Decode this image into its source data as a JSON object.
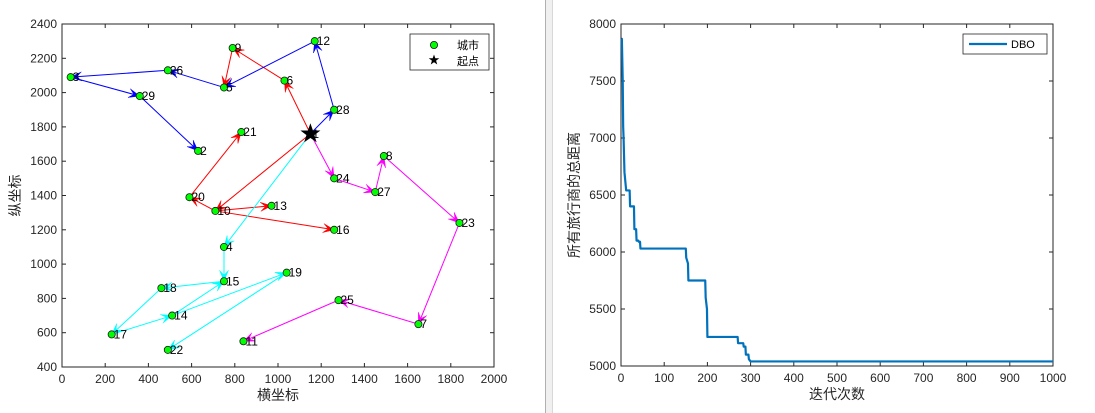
{
  "chart_data": [
    {
      "type": "scatter",
      "xlabel": "横坐标",
      "ylabel": "纵坐标",
      "xlim": [
        0,
        2000
      ],
      "ylim": [
        400,
        2400
      ],
      "xticks": [
        "0",
        "200",
        "400",
        "600",
        "800",
        "1000",
        "1200",
        "1400",
        "1600",
        "1800",
        "2000"
      ],
      "yticks": [
        "400",
        "600",
        "800",
        "1000",
        "1200",
        "1400",
        "1600",
        "1800",
        "2000",
        "2200",
        "2400"
      ],
      "grid": false,
      "legend_position": "top-right",
      "legend": {
        "city_label": "城市",
        "start_label": "起点"
      },
      "colors": {
        "city_fill": "#00ff00",
        "red": "#ff0000",
        "blue": "#0000ff",
        "cyan": "#00ffff",
        "magenta": "#ff00ff"
      },
      "cities": [
        {
          "id": "1",
          "x": 1150,
          "y": 1760
        },
        {
          "id": "2",
          "x": 630,
          "y": 1660
        },
        {
          "id": "3",
          "x": 40,
          "y": 2090
        },
        {
          "id": "4",
          "x": 750,
          "y": 1100
        },
        {
          "id": "5",
          "x": 750,
          "y": 2030
        },
        {
          "id": "6",
          "x": 1030,
          "y": 2070
        },
        {
          "id": "7",
          "x": 1650,
          "y": 650
        },
        {
          "id": "8",
          "x": 1490,
          "y": 1630
        },
        {
          "id": "9",
          "x": 790,
          "y": 2260
        },
        {
          "id": "10",
          "x": 710,
          "y": 1310
        },
        {
          "id": "11",
          "x": 840,
          "y": 550
        },
        {
          "id": "12",
          "x": 1170,
          "y": 2300
        },
        {
          "id": "13",
          "x": 970,
          "y": 1340
        },
        {
          "id": "14",
          "x": 510,
          "y": 700
        },
        {
          "id": "15",
          "x": 750,
          "y": 900
        },
        {
          "id": "16",
          "x": 1260,
          "y": 1200
        },
        {
          "id": "17",
          "x": 230,
          "y": 590
        },
        {
          "id": "18",
          "x": 460,
          "y": 860
        },
        {
          "id": "19",
          "x": 1040,
          "y": 950
        },
        {
          "id": "20",
          "x": 590,
          "y": 1390
        },
        {
          "id": "21",
          "x": 830,
          "y": 1770
        },
        {
          "id": "22",
          "x": 490,
          "y": 500
        },
        {
          "id": "23",
          "x": 1840,
          "y": 1240
        },
        {
          "id": "24",
          "x": 1260,
          "y": 1500
        },
        {
          "id": "25",
          "x": 1280,
          "y": 790
        },
        {
          "id": "26",
          "x": 490,
          "y": 2130
        },
        {
          "id": "27",
          "x": 1450,
          "y": 1420
        },
        {
          "id": "28",
          "x": 1260,
          "y": 1900
        },
        {
          "id": "29",
          "x": 360,
          "y": 1980
        }
      ],
      "start_city": "1",
      "routes": [
        {
          "color": "red",
          "cities": [
            "1",
            "6",
            "9",
            "5"
          ]
        },
        {
          "color": "red",
          "cities": [
            "1",
            "10",
            "20",
            "21"
          ]
        },
        {
          "color": "red",
          "cities": [
            "10",
            "13"
          ]
        },
        {
          "color": "red",
          "cities": [
            "10",
            "16"
          ]
        },
        {
          "color": "blue",
          "cities": [
            "1",
            "28",
            "12",
            "5",
            "26",
            "3",
            "29",
            "2"
          ]
        },
        {
          "color": "cyan",
          "cities": [
            "1",
            "4",
            "15",
            "18",
            "17",
            "14",
            "15"
          ]
        },
        {
          "color": "cyan",
          "cities": [
            "14",
            "19",
            "22"
          ]
        },
        {
          "color": "magenta",
          "cities": [
            "1",
            "24",
            "27",
            "8",
            "23",
            "7",
            "25",
            "11"
          ]
        }
      ]
    },
    {
      "type": "line",
      "xlabel": "迭代次数",
      "ylabel": "所有旅行商的总距离",
      "xlim": [
        0,
        1000
      ],
      "ylim": [
        5000,
        8000
      ],
      "xticks": [
        "0",
        "100",
        "200",
        "300",
        "400",
        "500",
        "600",
        "700",
        "800",
        "900",
        "1000"
      ],
      "yticks": [
        "5000",
        "5500",
        "6000",
        "6500",
        "7000",
        "7500",
        "8000"
      ],
      "grid": false,
      "legend_position": "top-right",
      "series": [
        {
          "name": "DBO",
          "color": "#0072bd",
          "x": [
            1,
            2,
            4,
            5,
            6,
            8,
            12,
            13,
            20,
            21,
            30,
            31,
            35,
            36,
            40,
            41,
            44,
            45,
            150,
            151,
            155,
            156,
            195,
            196,
            199,
            200,
            201,
            270,
            271,
            283,
            284,
            288,
            289,
            295,
            296,
            300,
            1000
          ],
          "y": [
            7870,
            7870,
            7500,
            7100,
            7000,
            6700,
            6540,
            6540,
            6540,
            6400,
            6400,
            6200,
            6200,
            6100,
            6100,
            6090,
            6090,
            6030,
            6030,
            5950,
            5900,
            5750,
            5750,
            5600,
            5500,
            5255,
            5255,
            5255,
            5200,
            5200,
            5170,
            5170,
            5100,
            5100,
            5060,
            5040,
            5040
          ]
        }
      ]
    }
  ]
}
